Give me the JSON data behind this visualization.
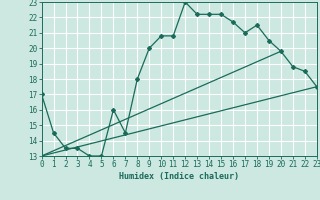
{
  "title": "",
  "xlabel": "Humidex (Indice chaleur)",
  "xlim": [
    0,
    23
  ],
  "ylim": [
    13,
    23
  ],
  "xticks": [
    0,
    1,
    2,
    3,
    4,
    5,
    6,
    7,
    8,
    9,
    10,
    11,
    12,
    13,
    14,
    15,
    16,
    17,
    18,
    19,
    20,
    21,
    22,
    23
  ],
  "yticks": [
    13,
    14,
    15,
    16,
    17,
    18,
    19,
    20,
    21,
    22,
    23
  ],
  "bg_color": "#cce8e0",
  "line_color": "#1a6b5a",
  "grid_color": "#ffffff",
  "line1_x": [
    0,
    1,
    2,
    3,
    4,
    5,
    6,
    7,
    8,
    9,
    10,
    11,
    12,
    13,
    14,
    15,
    16,
    17,
    18,
    19,
    20,
    21,
    22,
    23
  ],
  "line1_y": [
    17,
    14.5,
    13.5,
    13.5,
    13,
    13,
    16,
    14.5,
    18,
    20,
    20.8,
    20.8,
    23,
    22.2,
    22.2,
    22.2,
    21.7,
    21,
    21.5,
    20.5,
    19.8,
    18.8,
    18.5,
    17.5
  ],
  "line2_x": [
    0,
    20
  ],
  "line2_y": [
    13,
    19.8
  ],
  "line3_x": [
    0,
    23
  ],
  "line3_y": [
    13,
    17.5
  ]
}
